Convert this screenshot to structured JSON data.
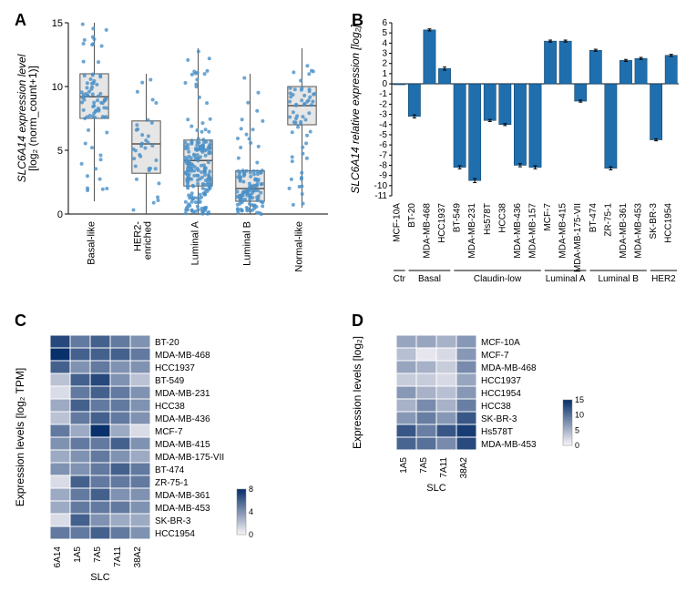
{
  "panelA": {
    "label": "A",
    "ylabel": "SLC6A14 expression level\n[log₂ (norm_count+1)]",
    "categories": [
      "Basal-like",
      "HER2-\nenriched",
      "Luminal A",
      "Luminal B",
      "Normal-like"
    ],
    "ylim": [
      0,
      15
    ],
    "yticks": [
      0,
      5,
      10,
      15
    ],
    "box": {
      "fill": "#e6e6e6",
      "stroke": "#555555",
      "data": [
        {
          "q1": 7.5,
          "med": 9.2,
          "q3": 11,
          "lo": 1,
          "hi": 15,
          "n": 80
        },
        {
          "q1": 3.2,
          "med": 5.5,
          "q3": 7.3,
          "lo": 0,
          "hi": 11,
          "n": 35
        },
        {
          "q1": 2.2,
          "med": 4.2,
          "q3": 5.8,
          "lo": 0,
          "hi": 13,
          "n": 200
        },
        {
          "q1": 1,
          "med": 2,
          "q3": 3.4,
          "lo": 0,
          "hi": 11,
          "n": 120
        },
        {
          "q1": 7,
          "med": 8.5,
          "q3": 10,
          "lo": 0.5,
          "hi": 13,
          "n": 60
        }
      ]
    },
    "point_color": "#4a90c7",
    "point_radius": 2,
    "axis_color": "#000000",
    "font_size": 11,
    "label_font_size": 12
  },
  "panelB": {
    "label": "B",
    "ylabel": "SLC6A14 relative expression [log₂]",
    "ylim": [
      -11,
      6
    ],
    "yticks": [
      -11,
      -10,
      -9,
      -8,
      -7,
      -6,
      -5,
      -4,
      -3,
      -2,
      -1,
      0,
      1,
      2,
      3,
      4,
      5,
      6
    ],
    "bar_color": "#1f6fae",
    "bar_stroke": "#0d3a5c",
    "err_color": "#000000",
    "groups": [
      {
        "name": "Ctr",
        "items": [
          {
            "label": "MCF-10A",
            "v": 0
          }
        ]
      },
      {
        "name": "Basal",
        "items": [
          {
            "label": "BT-20",
            "v": -3.2,
            "err": 0.15
          },
          {
            "label": "MDA-MB-468",
            "v": 5.3,
            "err": 0.1
          },
          {
            "label": "HCC1937",
            "v": 1.5,
            "err": 0.15
          }
        ]
      },
      {
        "name": "Claudin-low",
        "items": [
          {
            "label": "BT-549",
            "v": -8.2,
            "err": 0.15
          },
          {
            "label": "MDA-MB-231",
            "v": -9.5,
            "err": 0.2
          },
          {
            "label": "Hs578T",
            "v": -3.6,
            "err": 0.1
          },
          {
            "label": "HCC38",
            "v": -4.0,
            "err": 0.1
          },
          {
            "label": "MDA-MB-436",
            "v": -8.0,
            "err": 0.15
          },
          {
            "label": "MDA-MB-157",
            "v": -8.2,
            "err": 0.15
          }
        ]
      },
      {
        "name": "Luminal A",
        "items": [
          {
            "label": "MCF-7",
            "v": 4.2,
            "err": 0.1
          },
          {
            "label": "MDA-MB-415",
            "v": 4.2,
            "err": 0.1
          },
          {
            "label": "MDA-MB-175-VII",
            "v": -1.7,
            "err": 0.1
          }
        ]
      },
      {
        "name": "Luminal B",
        "items": [
          {
            "label": "BT-474",
            "v": 3.3,
            "err": 0.1
          },
          {
            "label": "ZR-75-1",
            "v": -8.3,
            "err": 0.15
          },
          {
            "label": "MDA-MB-361",
            "v": 2.3,
            "err": 0.1
          },
          {
            "label": "MDA-MB-453",
            "v": 2.5,
            "err": 0.1
          }
        ]
      },
      {
        "name": "HER2",
        "items": [
          {
            "label": "SK-BR-3",
            "v": -5.5,
            "err": 0.1
          },
          {
            "label": "HCC1954",
            "v": 2.8,
            "err": 0.1
          }
        ]
      }
    ],
    "axis_color": "#000000",
    "font_size": 10,
    "label_font_size": 12
  },
  "panelC": {
    "label": "C",
    "ylabel": "Expression levels [log₂ TPM]",
    "xlabel": "SLC",
    "cols": [
      "6A14",
      "1A5",
      "7A5",
      "7A11",
      "38A2"
    ],
    "rows": [
      "BT-20",
      "MDA-MB-468",
      "HCC1937",
      "BT-549",
      "MDA-MB-231",
      "HCC38",
      "MDA-MB-436",
      "MCF-7",
      "MDA-MB-415",
      "MDA-MB-175-VII",
      "BT-474",
      "ZR-75-1",
      "MDA-MB-361",
      "MDA-MB-453",
      "SK-BR-3",
      "HCC1954"
    ],
    "values": [
      [
        7,
        5,
        6,
        5,
        4
      ],
      [
        8,
        6,
        6,
        6,
        5
      ],
      [
        6,
        4,
        5,
        4,
        4
      ],
      [
        2,
        6,
        7,
        4,
        2
      ],
      [
        1,
        5,
        6,
        5,
        4
      ],
      [
        3,
        6,
        5,
        5,
        4
      ],
      [
        2,
        5,
        6,
        5,
        4
      ],
      [
        5,
        3,
        8,
        3,
        1
      ],
      [
        4,
        5,
        5,
        6,
        4
      ],
      [
        3,
        4,
        5,
        4,
        3
      ],
      [
        4,
        4,
        5,
        6,
        5
      ],
      [
        1,
        6,
        5,
        5,
        5
      ],
      [
        3,
        5,
        6,
        4,
        4
      ],
      [
        3,
        5,
        5,
        5,
        4
      ],
      [
        1,
        6,
        4,
        3,
        3
      ],
      [
        5,
        5,
        6,
        5,
        4
      ]
    ],
    "scale": {
      "min": 0,
      "max": 8,
      "ticks": [
        0,
        4,
        8
      ]
    },
    "color_lo": "#f7f3f7",
    "color_hi": "#08306b",
    "font_size": 10
  },
  "panelD": {
    "label": "D",
    "ylabel": "Expression levels [log₂]",
    "xlabel": "SLC",
    "cols": [
      "1A5",
      "7A5",
      "7A11",
      "38A2"
    ],
    "rows": [
      "MCF-10A",
      "MCF-7",
      "MDA-MB-468",
      "HCC1937",
      "HCC1954",
      "HCC38",
      "SK-BR-3",
      "Hs578T",
      "MDA-MB-453"
    ],
    "values": [
      [
        6,
        6,
        5,
        7
      ],
      [
        4,
        1,
        2,
        7
      ],
      [
        6,
        5,
        3,
        8
      ],
      [
        3,
        3,
        2,
        6
      ],
      [
        7,
        5,
        4,
        7
      ],
      [
        5,
        8,
        5,
        9
      ],
      [
        7,
        9,
        7,
        12
      ],
      [
        12,
        9,
        12,
        14
      ],
      [
        11,
        10,
        8,
        13
      ]
    ],
    "scale": {
      "min": 0,
      "max": 15,
      "ticks": [
        0,
        5,
        10,
        15
      ]
    },
    "color_lo": "#f7f3f7",
    "color_hi": "#08306b",
    "font_size": 10
  }
}
